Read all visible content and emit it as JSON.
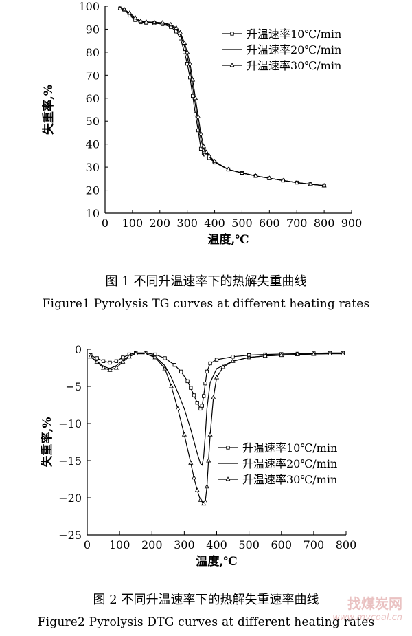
{
  "figure1": {
    "caption_cn": "图 1   不同升温速率下的热解失重曲线",
    "caption_en": "Figure1    Pyrolysis TG curves at different heating rates"
  },
  "figure2": {
    "caption_cn": "图 2   不同升温速率下的热解失重速率曲线",
    "caption_en": "Figure2    Pyrolysis DTG curves at different heating rates"
  },
  "watermark": {
    "cn": "找煤炭网",
    "en": "www.mycoal.cn"
  },
  "chart_data": [
    {
      "type": "line",
      "xlabel": "温度,℃",
      "ylabel": "失重率,%",
      "xlim": [
        0,
        900
      ],
      "ylim": [
        10,
        100
      ],
      "xticks": [
        0,
        100,
        200,
        300,
        400,
        500,
        600,
        700,
        800,
        900
      ],
      "yticks": [
        10,
        20,
        30,
        40,
        50,
        60,
        70,
        80,
        90,
        100
      ],
      "grid": false,
      "legend_position": "top-right",
      "series": [
        {
          "name": "升温速率10℃/min",
          "marker": "square",
          "x": [
            55,
            70,
            90,
            110,
            130,
            150,
            180,
            210,
            240,
            260,
            275,
            290,
            300,
            310,
            320,
            330,
            340,
            350,
            360,
            365,
            370,
            380,
            400,
            450,
            500,
            550,
            600,
            650,
            700,
            750,
            800
          ],
          "y": [
            99,
            98.5,
            96,
            94,
            93,
            92.8,
            92.6,
            92.2,
            91,
            89,
            86,
            80,
            75,
            69,
            61,
            53,
            46,
            38,
            36,
            35.5,
            35,
            34,
            32,
            29,
            27.5,
            26.2,
            25.2,
            24.2,
            23.3,
            22.6,
            22
          ]
        },
        {
          "name": "升温速率20℃/min",
          "marker": "none",
          "x": [
            55,
            70,
            90,
            110,
            130,
            150,
            180,
            210,
            240,
            260,
            275,
            290,
            300,
            310,
            320,
            330,
            340,
            350,
            360,
            370,
            380,
            400,
            450,
            500,
            550,
            600,
            650,
            700,
            750,
            800
          ],
          "y": [
            99,
            98.5,
            96.5,
            94.5,
            93.2,
            93,
            92.8,
            92.5,
            91.6,
            90,
            87.5,
            82.5,
            78,
            72.5,
            65,
            57,
            49,
            42,
            38,
            36,
            34.5,
            32.2,
            29,
            27.5,
            26.2,
            25.2,
            24.2,
            23.3,
            22.6,
            22
          ]
        },
        {
          "name": "升温速率30℃/min",
          "marker": "triangle",
          "x": [
            55,
            70,
            90,
            110,
            130,
            150,
            180,
            210,
            240,
            260,
            275,
            290,
            300,
            310,
            320,
            330,
            340,
            350,
            360,
            370,
            380,
            400,
            450,
            500,
            550,
            600,
            650,
            700,
            750,
            800
          ],
          "y": [
            99,
            98.6,
            97,
            95,
            93.5,
            93.2,
            93,
            92.8,
            92,
            90.6,
            88.5,
            84,
            80,
            75,
            68,
            60,
            52,
            44.5,
            39,
            36.5,
            35,
            32.5,
            29,
            27.5,
            26.2,
            25.2,
            24.2,
            23.3,
            22.6,
            22
          ]
        }
      ]
    },
    {
      "type": "line",
      "xlabel": "温度,℃",
      "ylabel": "失重率,%",
      "xlim": [
        0,
        800
      ],
      "ylim": [
        -25,
        0
      ],
      "xticks": [
        0,
        100,
        200,
        300,
        400,
        500,
        600,
        700,
        800
      ],
      "yticks": [
        0,
        -5,
        -10,
        -15,
        -20,
        -25
      ],
      "grid": false,
      "legend_position": "bottom-right",
      "series": [
        {
          "name": "升温速率10℃/min",
          "marker": "square",
          "x": [
            10,
            30,
            50,
            70,
            90,
            110,
            130,
            150,
            180,
            210,
            240,
            270,
            290,
            310,
            320,
            330,
            340,
            350,
            355,
            360,
            365,
            370,
            380,
            400,
            450,
            500,
            550,
            600,
            650,
            700,
            750,
            790
          ],
          "y": [
            -0.8,
            -1.2,
            -1.6,
            -1.8,
            -1.6,
            -1.1,
            -0.7,
            -0.5,
            -0.5,
            -0.7,
            -1.2,
            -2.1,
            -3.0,
            -4.3,
            -5.2,
            -6.2,
            -7.2,
            -8.0,
            -7.6,
            -6.3,
            -4.6,
            -3.0,
            -1.9,
            -1.4,
            -1.0,
            -0.8,
            -0.7,
            -0.65,
            -0.6,
            -0.55,
            -0.5,
            -0.5
          ]
        },
        {
          "name": "升温速率20℃/min",
          "marker": "none",
          "x": [
            10,
            30,
            50,
            70,
            90,
            110,
            130,
            150,
            180,
            210,
            240,
            260,
            280,
            300,
            320,
            330,
            340,
            350,
            355,
            360,
            365,
            370,
            380,
            400,
            450,
            500,
            550,
            600,
            650,
            700,
            750,
            790
          ],
          "y": [
            -1.0,
            -1.6,
            -2.3,
            -2.6,
            -2.2,
            -1.5,
            -0.9,
            -0.6,
            -0.6,
            -1.0,
            -2.2,
            -3.8,
            -5.8,
            -8.0,
            -10.8,
            -12.4,
            -14.0,
            -15.4,
            -15.6,
            -14.5,
            -11.5,
            -8.0,
            -4.5,
            -2.6,
            -1.6,
            -1.1,
            -0.9,
            -0.8,
            -0.7,
            -0.65,
            -0.6,
            -0.6
          ]
        },
        {
          "name": "升温速率30℃/min",
          "marker": "triangle",
          "x": [
            10,
            30,
            50,
            70,
            90,
            110,
            130,
            150,
            180,
            210,
            240,
            260,
            280,
            300,
            320,
            330,
            340,
            350,
            360,
            365,
            370,
            375,
            380,
            390,
            400,
            420,
            450,
            500,
            550,
            600,
            650,
            700,
            750,
            790
          ],
          "y": [
            -1.0,
            -1.7,
            -2.5,
            -2.8,
            -2.5,
            -1.7,
            -1.0,
            -0.6,
            -0.6,
            -1.1,
            -2.6,
            -5.0,
            -8.0,
            -11.5,
            -15.3,
            -17.3,
            -19.0,
            -20.3,
            -20.8,
            -20.5,
            -18.5,
            -15.0,
            -11.5,
            -6.5,
            -3.8,
            -2.4,
            -1.6,
            -1.1,
            -0.9,
            -0.8,
            -0.7,
            -0.65,
            -0.6,
            -0.6
          ]
        }
      ]
    }
  ]
}
